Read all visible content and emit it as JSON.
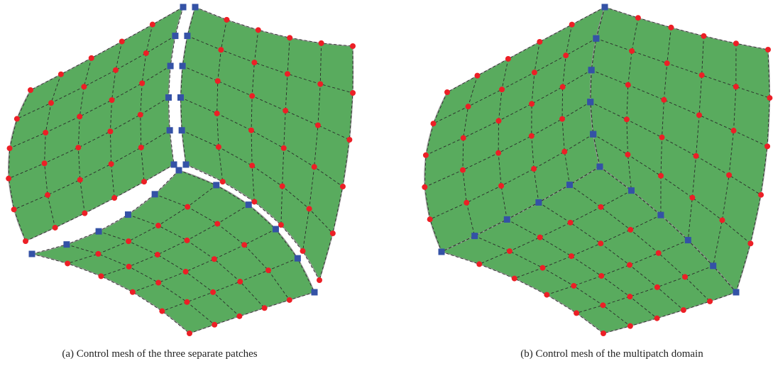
{
  "figures": [
    {
      "caption": "(a) Control mesh of the three separate patches"
    },
    {
      "caption": "(b) Control mesh of the multipatch domain"
    }
  ]
}
